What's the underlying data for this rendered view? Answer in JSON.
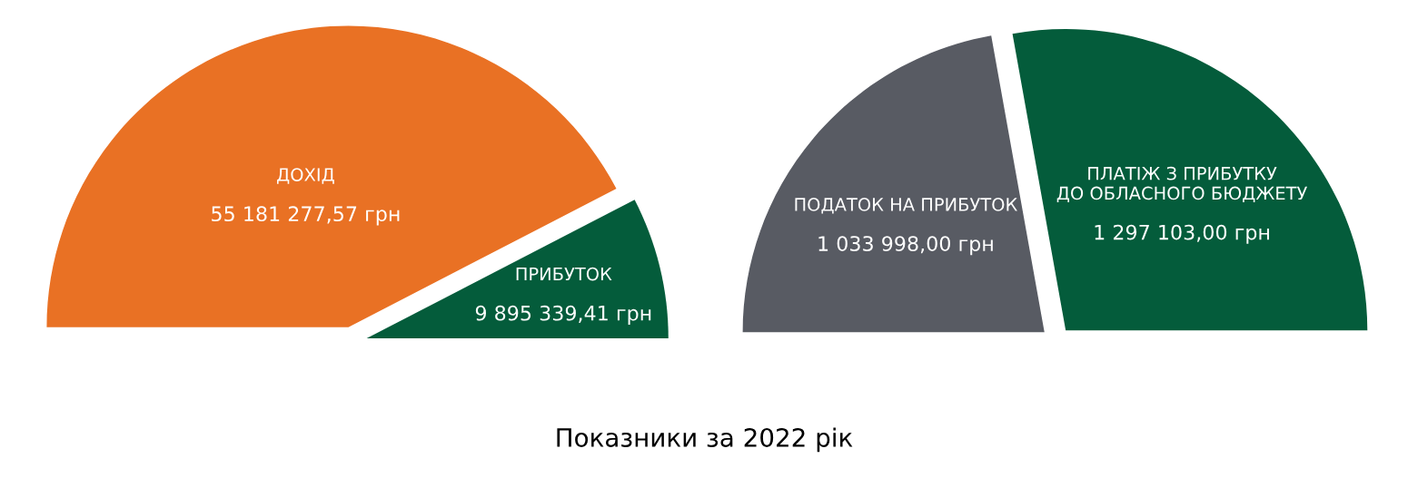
{
  "chart_data": [
    {
      "type": "pie",
      "categories": [
        "ДОХІД",
        "ПРИБУТОК"
      ],
      "values": [
        55181277.57,
        9895339.41
      ],
      "value_labels": [
        "55 181 277,57 грн",
        "9 895 339,41 грн"
      ],
      "colors": [
        "#e97124",
        "#045c3b"
      ],
      "annotations": [
        "Показники за 2022 рік"
      ]
    },
    {
      "type": "pie",
      "categories": [
        "ПОДАТОК НА ПРИБУТОК",
        "ПЛАТІЖ З ПРИБУТКУ ДО ОБЛАСНОГО БЮДЖЕТУ"
      ],
      "values": [
        1033998.0,
        1297103.0
      ],
      "value_labels": [
        "1 033 998,00 грн",
        "1 297 103,00 грн"
      ],
      "colors": [
        "#585b63",
        "#045c3b"
      ]
    }
  ]
}
